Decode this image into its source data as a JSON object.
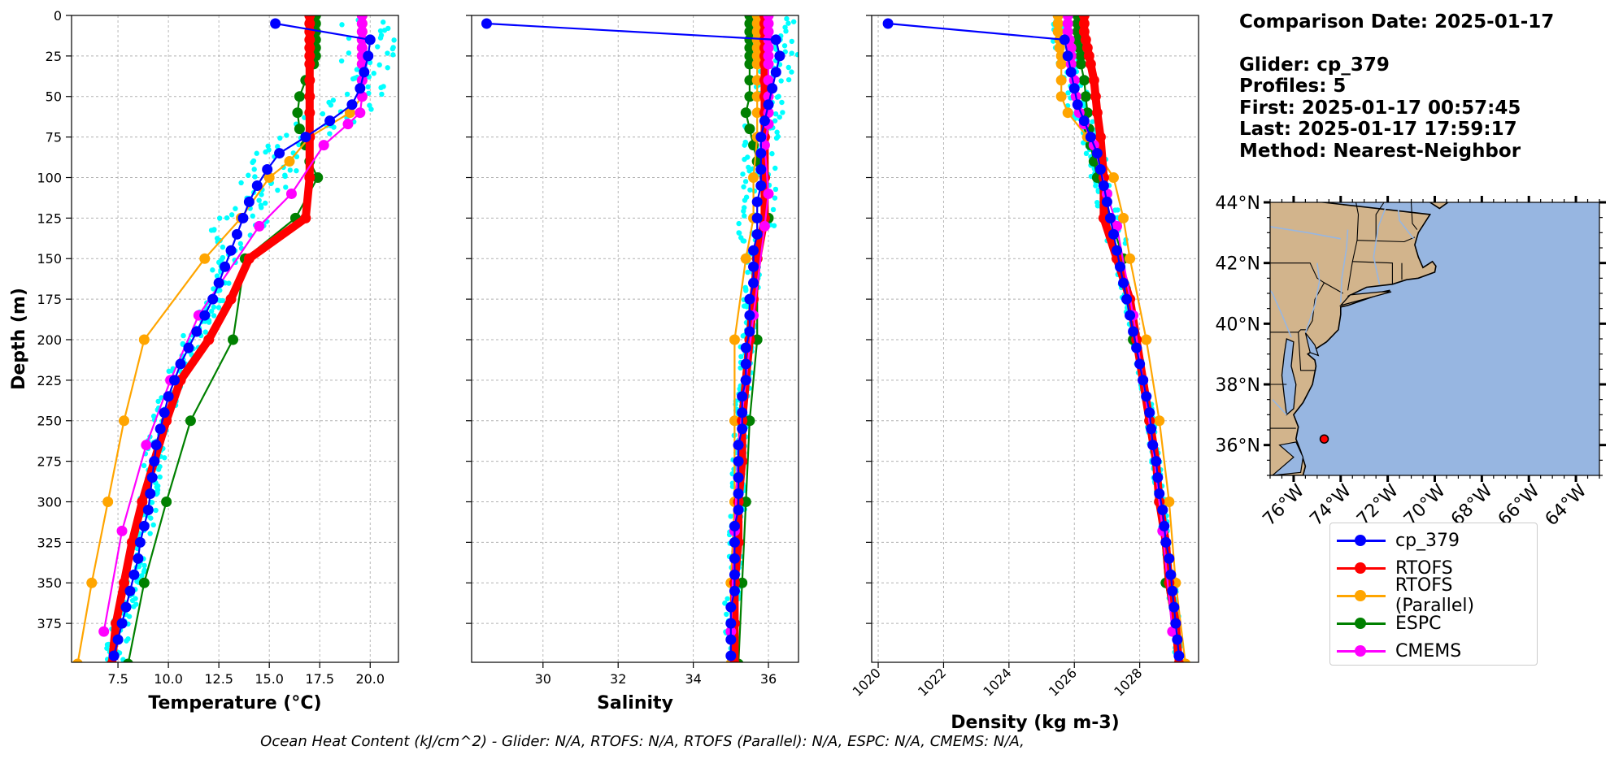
{
  "info": {
    "comparison_date": "Comparison Date: 2025-01-17",
    "glider": "Glider: cp_379",
    "profiles": "Profiles: 5",
    "first": "First: 2025-01-17 00:57:45",
    "last": "Last: 2025-01-17 17:59:17",
    "method": "Method: Nearest-Neighbor"
  },
  "footer": "Ocean Heat Content (kJ/cm^2) - Glider: N/A,  RTOFS: N/A,  RTOFS (Parallel): N/A,  ESPC: N/A,  CMEMS: N/A,",
  "colors": {
    "cp_379": "#0000ff",
    "RTOFS": "#ff0000",
    "RTOFS (Parallel)": "#ffa500",
    "ESPC": "#008000",
    "CMEMS": "#ff00ff",
    "glider_raw": "#00ffff",
    "land": "#d2b48c",
    "ocean": "#97b6e1",
    "rivers": "#97b6e1"
  },
  "legend": [
    "cp_379",
    "RTOFS",
    "RTOFS (Parallel)",
    "ESPC",
    "CMEMS"
  ],
  "chart_data": [
    {
      "type": "line",
      "xlabel": "Temperature (°C)",
      "ylabel": "Depth (m)",
      "xlim": [
        5.2,
        21.4
      ],
      "ylim": [
        399,
        0
      ],
      "xticks": [
        7.5,
        10.0,
        12.5,
        15.0,
        17.5,
        20.0
      ],
      "yticks": [
        0,
        25,
        50,
        75,
        100,
        125,
        150,
        175,
        200,
        225,
        250,
        275,
        300,
        325,
        350,
        375
      ],
      "grid": true,
      "series": [
        {
          "name": "cp_379",
          "depth": [
            5,
            15,
            25,
            35,
            45,
            55,
            65,
            75,
            85,
            95,
            105,
            115,
            125,
            135,
            145,
            155,
            165,
            175,
            185,
            195,
            205,
            215,
            225,
            235,
            245,
            255,
            265,
            275,
            285,
            295,
            305,
            315,
            325,
            335,
            345,
            355,
            365,
            375,
            385,
            395
          ],
          "values": [
            15.3,
            20.0,
            19.9,
            19.7,
            19.5,
            19.1,
            18.0,
            16.8,
            15.5,
            14.9,
            14.4,
            14.0,
            13.7,
            13.4,
            13.1,
            12.8,
            12.5,
            12.2,
            11.8,
            11.4,
            11.0,
            10.6,
            10.3,
            10.0,
            9.8,
            9.6,
            9.4,
            9.3,
            9.2,
            9.1,
            9.0,
            8.8,
            8.6,
            8.5,
            8.3,
            8.1,
            7.9,
            7.7,
            7.5,
            7.3
          ]
        },
        {
          "name": "RTOFS",
          "depth": [
            0,
            5,
            10,
            15,
            20,
            25,
            30,
            40,
            50,
            60,
            75,
            100,
            125,
            150,
            175,
            200,
            225,
            250,
            275,
            300,
            325,
            350,
            375,
            400
          ],
          "values": [
            17.0,
            17.0,
            17.0,
            17.0,
            17.0,
            17.0,
            17.0,
            17.0,
            17.0,
            17.0,
            17.0,
            17.0,
            16.8,
            14.0,
            13.1,
            12.0,
            10.6,
            9.9,
            9.3,
            8.7,
            8.2,
            7.8,
            7.4,
            7.2
          ]
        },
        {
          "name": "RTOFS (Parallel)",
          "depth": [
            0,
            5,
            10,
            15,
            20,
            25,
            30,
            40,
            50,
            60,
            75,
            90,
            100,
            125,
            150,
            200,
            250,
            300,
            350,
            400
          ],
          "values": [
            19.6,
            19.6,
            19.6,
            19.6,
            19.6,
            19.6,
            19.6,
            19.6,
            19.6,
            19.0,
            17.0,
            16.0,
            15.0,
            13.6,
            11.8,
            8.8,
            7.8,
            7.0,
            6.2,
            5.5
          ]
        },
        {
          "name": "ESPC",
          "depth": [
            0,
            5,
            10,
            15,
            20,
            25,
            30,
            40,
            50,
            60,
            70,
            80,
            90,
            100,
            125,
            150,
            200,
            250,
            300,
            350,
            400
          ],
          "values": [
            17.3,
            17.3,
            17.3,
            17.3,
            17.3,
            17.3,
            17.2,
            16.8,
            16.5,
            16.4,
            16.5,
            16.8,
            17.0,
            17.4,
            16.3,
            13.8,
            13.2,
            11.1,
            9.9,
            8.8,
            8.0
          ]
        },
        {
          "name": "CMEMS",
          "depth": [
            0,
            5,
            10,
            15,
            20,
            25,
            30,
            40,
            50,
            60,
            67,
            80,
            110,
            130,
            185,
            225,
            265,
            318,
            380
          ],
          "values": [
            19.6,
            19.6,
            19.6,
            19.6,
            19.6,
            19.6,
            19.6,
            19.6,
            19.6,
            19.5,
            18.9,
            17.7,
            16.1,
            14.5,
            11.5,
            10.1,
            8.9,
            7.7,
            6.8
          ]
        }
      ]
    },
    {
      "type": "line",
      "xlabel": "Salinity",
      "xlim": [
        28.1,
        36.8
      ],
      "ylim": [
        399,
        0
      ],
      "xticks": [
        30,
        32,
        34,
        36
      ],
      "grid": true,
      "series": [
        {
          "name": "cp_379",
          "depth": [
            5,
            15,
            25,
            35,
            45,
            55,
            65,
            75,
            85,
            95,
            105,
            115,
            125,
            135,
            145,
            155,
            165,
            175,
            185,
            195,
            205,
            215,
            225,
            235,
            245,
            255,
            265,
            275,
            285,
            295,
            305,
            315,
            325,
            335,
            345,
            355,
            365,
            375,
            385,
            395
          ],
          "values": [
            28.5,
            36.2,
            36.3,
            36.2,
            36.1,
            36.0,
            35.9,
            35.8,
            35.8,
            35.8,
            35.8,
            35.7,
            35.7,
            35.7,
            35.6,
            35.6,
            35.6,
            35.5,
            35.5,
            35.5,
            35.4,
            35.4,
            35.4,
            35.3,
            35.3,
            35.3,
            35.2,
            35.2,
            35.2,
            35.2,
            35.2,
            35.1,
            35.1,
            35.1,
            35.1,
            35.1,
            35.0,
            35.0,
            35.0,
            35.0
          ]
        },
        {
          "name": "RTOFS",
          "depth": [
            0,
            5,
            10,
            15,
            20,
            25,
            30,
            40,
            50,
            60,
            75,
            100,
            125,
            150,
            175,
            200,
            225,
            250,
            275,
            300,
            325,
            350,
            375,
            400
          ],
          "values": [
            35.9,
            35.9,
            35.9,
            35.9,
            35.9,
            35.9,
            35.9,
            35.9,
            35.9,
            35.9,
            35.9,
            35.9,
            35.9,
            35.7,
            35.6,
            35.5,
            35.4,
            35.3,
            35.3,
            35.2,
            35.2,
            35.1,
            35.1,
            35.1
          ]
        },
        {
          "name": "RTOFS (Parallel)",
          "depth": [
            0,
            5,
            10,
            15,
            20,
            25,
            30,
            40,
            50,
            60,
            75,
            100,
            125,
            150,
            200,
            250,
            300,
            350,
            400
          ],
          "values": [
            35.7,
            35.7,
            35.7,
            35.7,
            35.7,
            35.7,
            35.7,
            35.7,
            35.7,
            35.7,
            35.7,
            35.6,
            35.6,
            35.4,
            35.1,
            35.1,
            35.1,
            35.0,
            35.0
          ]
        },
        {
          "name": "ESPC",
          "depth": [
            0,
            5,
            10,
            15,
            20,
            25,
            30,
            40,
            50,
            60,
            70,
            80,
            90,
            100,
            125,
            150,
            200,
            250,
            300,
            350,
            400
          ],
          "values": [
            35.5,
            35.5,
            35.5,
            35.5,
            35.5,
            35.5,
            35.5,
            35.5,
            35.5,
            35.4,
            35.5,
            35.6,
            35.7,
            35.9,
            36.0,
            35.7,
            35.7,
            35.5,
            35.4,
            35.3,
            35.2
          ]
        },
        {
          "name": "CMEMS",
          "depth": [
            0,
            5,
            10,
            15,
            20,
            25,
            30,
            40,
            50,
            60,
            67,
            80,
            110,
            130,
            185,
            225,
            265,
            318,
            380
          ],
          "values": [
            36.0,
            36.0,
            36.0,
            36.0,
            36.0,
            36.0,
            36.0,
            36.0,
            36.0,
            36.0,
            36.0,
            35.9,
            36.0,
            35.9,
            35.6,
            35.4,
            35.2,
            35.1,
            35.0
          ]
        }
      ]
    },
    {
      "type": "line",
      "xlabel": "Density (kg m-3)",
      "xlim": [
        1019.8,
        1029.8
      ],
      "ylim": [
        399,
        0
      ],
      "xticks": [
        1020,
        1022,
        1024,
        1026,
        1028
      ],
      "grid": true,
      "series": [
        {
          "name": "cp_379",
          "depth": [
            5,
            15,
            25,
            35,
            45,
            55,
            65,
            75,
            85,
            95,
            105,
            115,
            125,
            135,
            145,
            155,
            165,
            175,
            185,
            195,
            205,
            215,
            225,
            235,
            245,
            255,
            265,
            275,
            285,
            295,
            305,
            315,
            325,
            335,
            345,
            355,
            365,
            375,
            385,
            395
          ],
          "values": [
            1020.3,
            1025.7,
            1025.8,
            1025.9,
            1026.0,
            1026.1,
            1026.3,
            1026.5,
            1026.7,
            1026.8,
            1026.9,
            1027.0,
            1027.1,
            1027.2,
            1027.3,
            1027.4,
            1027.5,
            1027.6,
            1027.7,
            1027.8,
            1027.9,
            1028.0,
            1028.1,
            1028.2,
            1028.3,
            1028.35,
            1028.4,
            1028.5,
            1028.55,
            1028.6,
            1028.7,
            1028.75,
            1028.8,
            1028.9,
            1028.95,
            1029.0,
            1029.05,
            1029.1,
            1029.15,
            1029.2
          ]
        },
        {
          "name": "RTOFS",
          "depth": [
            0,
            5,
            10,
            15,
            20,
            25,
            30,
            40,
            50,
            60,
            75,
            100,
            125,
            150,
            175,
            200,
            225,
            250,
            275,
            300,
            325,
            350,
            375,
            400
          ],
          "values": [
            1026.3,
            1026.3,
            1026.3,
            1026.35,
            1026.4,
            1026.45,
            1026.5,
            1026.6,
            1026.65,
            1026.7,
            1026.8,
            1026.9,
            1026.9,
            1027.3,
            1027.7,
            1027.9,
            1028.1,
            1028.3,
            1028.5,
            1028.6,
            1028.8,
            1028.9,
            1029.1,
            1029.2
          ]
        },
        {
          "name": "RTOFS (Parallel)",
          "depth": [
            0,
            5,
            10,
            15,
            20,
            25,
            30,
            40,
            50,
            60,
            75,
            100,
            125,
            150,
            200,
            250,
            300,
            350,
            400
          ],
          "values": [
            1025.5,
            1025.5,
            1025.5,
            1025.55,
            1025.55,
            1025.6,
            1025.6,
            1025.6,
            1025.6,
            1025.8,
            1026.4,
            1027.2,
            1027.5,
            1027.7,
            1028.2,
            1028.6,
            1028.9,
            1029.1,
            1029.4
          ]
        },
        {
          "name": "ESPC",
          "depth": [
            0,
            5,
            10,
            15,
            20,
            25,
            30,
            40,
            50,
            60,
            70,
            80,
            90,
            100,
            125,
            150,
            200,
            250,
            300,
            350,
            400
          ],
          "values": [
            1026.1,
            1026.1,
            1026.1,
            1026.1,
            1026.15,
            1026.2,
            1026.2,
            1026.3,
            1026.35,
            1026.4,
            1026.45,
            1026.5,
            1026.6,
            1026.7,
            1027.1,
            1027.5,
            1027.8,
            1028.3,
            1028.6,
            1028.8,
            1029.2
          ]
        },
        {
          "name": "CMEMS",
          "depth": [
            0,
            5,
            10,
            15,
            20,
            25,
            30,
            40,
            50,
            60,
            67,
            80,
            110,
            130,
            185,
            225,
            265,
            318,
            380
          ],
          "values": [
            1025.8,
            1025.8,
            1025.8,
            1025.85,
            1025.9,
            1025.9,
            1025.9,
            1026.0,
            1026.05,
            1026.15,
            1026.3,
            1026.6,
            1027.0,
            1027.3,
            1027.8,
            1028.1,
            1028.4,
            1028.7,
            1029.0
          ]
        }
      ]
    },
    {
      "type": "map",
      "lon_range": [
        -77.0,
        -63.0
      ],
      "lat_range": [
        35.0,
        44.0
      ],
      "xticks": [
        -76,
        -74,
        -72,
        -70,
        -68,
        -66,
        -64
      ],
      "xtick_labels": [
        "76°W",
        "74°W",
        "72°W",
        "70°W",
        "68°W",
        "66°W",
        "64°W"
      ],
      "yticks": [
        36,
        38,
        40,
        42,
        44
      ],
      "ytick_labels": [
        "36°N",
        "38°N",
        "40°N",
        "42°N",
        "44°N"
      ],
      "marker": {
        "lon": -74.7,
        "lat": 36.2
      }
    }
  ]
}
